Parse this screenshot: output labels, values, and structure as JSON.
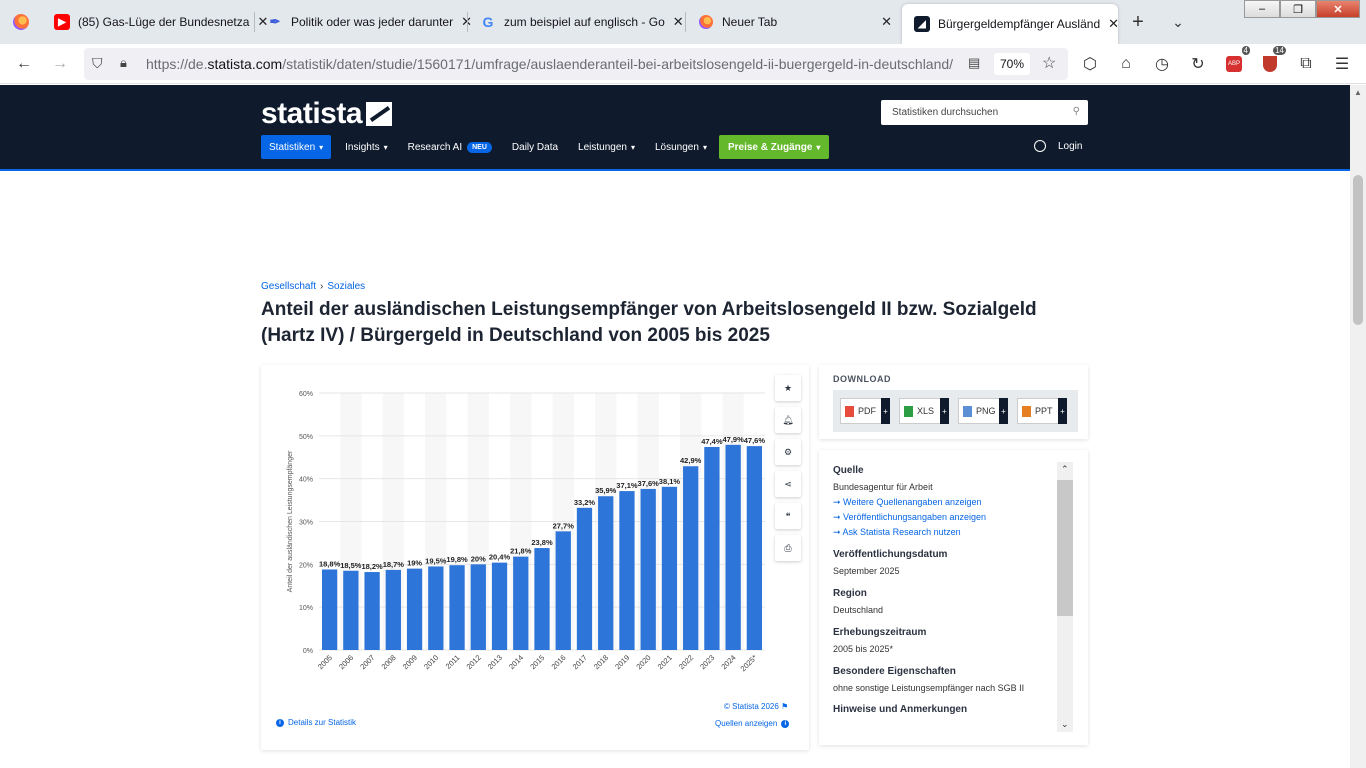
{
  "browser": {
    "tabs": [
      {
        "label": "(85) Gas-Lüge der Bundesnetzа",
        "icon": "youtube-icon",
        "color": "#ff0000"
      },
      {
        "label": "Politik oder was jeder darunter",
        "icon": "quill-icon",
        "color": "#3b5bdb"
      },
      {
        "label": "zum beispiel auf englisch - Go",
        "icon": "google-icon",
        "color": "#4285f4"
      },
      {
        "label": "Neuer Tab",
        "icon": "firefox-icon",
        "color": "#ff7139"
      },
      {
        "label": "Bürgergeldempfänger Ausländ",
        "icon": "statista-icon",
        "color": "#0f1b2d"
      }
    ],
    "url_prefix": "https://de.",
    "url_domain": "statista.com",
    "url_rest": "/statistik/daten/studie/1560171/umfrage/auslaenderanteil-bei-arbeitslosengeld-ii-buergergeld-in-deutschland/",
    "zoom": "70%",
    "badge_abp": "4",
    "badge_ublock": "14"
  },
  "header": {
    "logo": "statista",
    "search_placeholder": "Statistiken durchsuchen",
    "menu": {
      "statistiken": "Statistiken",
      "insights": "Insights",
      "research_ai": "Research AI",
      "neu": "NEU",
      "daily_data": "Daily Data",
      "leistungen": "Leistungen",
      "loesungen": "Lösungen",
      "preise": "Preise & Zugänge"
    },
    "login": "Login"
  },
  "breadcrumb": {
    "a": "Gesellschaft",
    "b": "Soziales"
  },
  "title": "Anteil der ausländischen Leistungsempfänger von Arbeitslosengeld II bzw. Sozialgeld (Hartz IV) / Bürgergeld in Deutschland von 2005 bis 2025",
  "chart_data": {
    "type": "bar",
    "ylabel": "Anteil der ausländischen Leistungsempfänger",
    "ylim": [
      0,
      60
    ],
    "yticks": [
      "0%",
      "10%",
      "20%",
      "30%",
      "40%",
      "50%",
      "60%"
    ],
    "categories": [
      "2005",
      "2006",
      "2007",
      "2008",
      "2009",
      "2010",
      "2011",
      "2012",
      "2013",
      "2014",
      "2015",
      "2016",
      "2017",
      "2018",
      "2019",
      "2020",
      "2021",
      "2022",
      "2023",
      "2024",
      "2025*"
    ],
    "values": [
      18.8,
      18.5,
      18.2,
      18.7,
      19,
      19.5,
      19.8,
      20,
      20.4,
      21.8,
      23.8,
      27.7,
      33.2,
      35.9,
      37.1,
      37.6,
      38.1,
      42.9,
      47.4,
      47.9,
      47.6
    ],
    "labels": [
      "18,8%",
      "18,5%",
      "18,2%",
      "18,7%",
      "19%",
      "19,5%",
      "19,8%",
      "20%",
      "20,4%",
      "21,8%",
      "23,8%",
      "27,7%",
      "33,2%",
      "35,9%",
      "37,1%",
      "37,6%",
      "38,1%",
      "42,9%",
      "47,4%",
      "47,9%",
      "47,6%"
    ],
    "bar_color": "#2e75d9",
    "grid": true
  },
  "chart_footer": {
    "details": "Details zur Statistik",
    "copyright": "© Statista 2026",
    "quellen": "Quellen anzeigen"
  },
  "download": {
    "title": "DOWNLOAD",
    "formats": [
      "PDF",
      "XLS",
      "PNG",
      "PPT"
    ]
  },
  "info": {
    "quelle_h": "Quelle",
    "quelle": "Bundesagentur für Arbeit",
    "link1": "Weitere Quellenangaben anzeigen",
    "link2": "Veröffentlichungsangaben anzeigen",
    "link3": "Ask Statista Research nutzen",
    "datum_h": "Veröffentlichungsdatum",
    "datum": "September 2025",
    "region_h": "Region",
    "region": "Deutschland",
    "zeitraum_h": "Erhebungszeitraum",
    "zeitraum": "2005 bis 2025*",
    "eigenschaften_h": "Besondere Eigenschaften",
    "eigenschaften": "ohne sonstige Leistungsempfänger nach SGB II",
    "hinweise_h": "Hinweise und Anmerkungen"
  }
}
